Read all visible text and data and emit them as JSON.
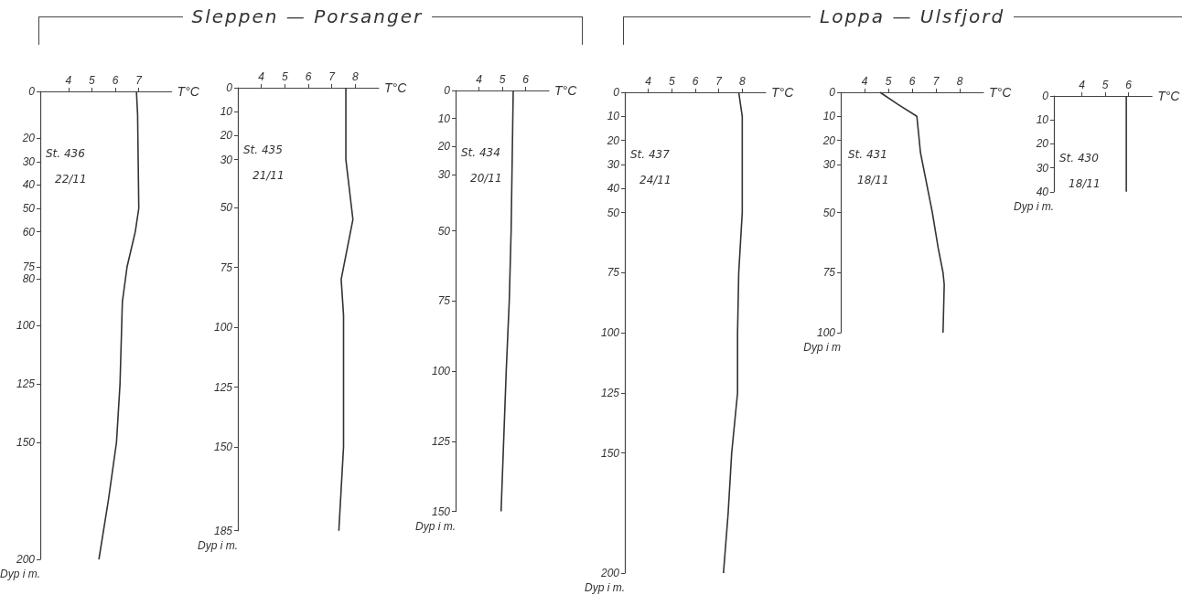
{
  "chart_data": [
    {
      "type": "line",
      "xlabel": "T°C",
      "ylabel": "Dyp i m.",
      "annotations": [
        "St. 436",
        "22/11"
      ],
      "xlim": [
        2.8,
        8.4
      ],
      "xticks": [
        4,
        5,
        6,
        7
      ],
      "ylim": [
        200,
        0
      ],
      "yticks": [
        0,
        20,
        30,
        40,
        50,
        60,
        75,
        80,
        100,
        125,
        150,
        200
      ],
      "grid": false,
      "marker": "none",
      "series": [
        {
          "color": "#333333",
          "x": [
            6.9,
            6.95,
            7.0,
            6.85,
            6.5,
            6.3,
            6.2,
            6.05,
            5.7,
            5.3
          ],
          "values": [
            0,
            10,
            50,
            60,
            75,
            90,
            125,
            150,
            175,
            200
          ]
        }
      ]
    },
    {
      "type": "line",
      "title": "Sleppen — Porsanger",
      "xlabel": "T°C",
      "ylabel": "Dyp i m.",
      "annotations": [
        "St. 435",
        "21/11"
      ],
      "xlim": [
        3,
        9
      ],
      "xticks": [
        4,
        5,
        6,
        7,
        8
      ],
      "ylim": [
        185,
        0
      ],
      "yticks": [
        0,
        10,
        20,
        30,
        50,
        75,
        100,
        125,
        150,
        185
      ],
      "grid": false,
      "marker": "none",
      "series": [
        {
          "color": "#333333",
          "x": [
            7.6,
            7.6,
            7.9,
            7.4,
            7.5,
            7.5,
            7.3
          ],
          "values": [
            0,
            30,
            55,
            80,
            95,
            150,
            185
          ]
        }
      ]
    },
    {
      "type": "line",
      "xlabel": "T°C",
      "ylabel": "Dyp i m.",
      "annotations": [
        "St. 434",
        "20/11"
      ],
      "xlim": [
        3,
        7
      ],
      "xticks": [
        4,
        5,
        6
      ],
      "ylim": [
        150,
        0
      ],
      "yticks": [
        0,
        10,
        20,
        30,
        50,
        75,
        100,
        125,
        150
      ],
      "grid": false,
      "marker": "none",
      "series": [
        {
          "color": "#333333",
          "x": [
            5.47,
            5.38,
            5.3,
            5.17,
            4.95
          ],
          "values": [
            0,
            50,
            75,
            100,
            150
          ]
        }
      ]
    },
    {
      "type": "line",
      "xlabel": "T°C",
      "ylabel": "Dyp i m.",
      "annotations": [
        "St. 437",
        "24/11"
      ],
      "xlim": [
        3,
        9
      ],
      "xticks": [
        4,
        5,
        6,
        7,
        8
      ],
      "ylim": [
        200,
        0
      ],
      "yticks": [
        0,
        10,
        20,
        30,
        40,
        50,
        75,
        100,
        125,
        150,
        200
      ],
      "grid": false,
      "marker": "none",
      "series": [
        {
          "color": "#333333",
          "x": [
            7.85,
            8.0,
            8.0,
            7.85,
            7.8,
            7.8,
            7.55,
            7.4,
            7.2
          ],
          "values": [
            0,
            10,
            50,
            75,
            100,
            125,
            150,
            175,
            200
          ]
        }
      ]
    },
    {
      "type": "line",
      "title": "Loppa — Ulsfjord",
      "xlabel": "T°C",
      "ylabel": "Dyp i m",
      "annotations": [
        "St. 431",
        "18/11"
      ],
      "xlim": [
        3,
        9
      ],
      "xticks": [
        4,
        5,
        6,
        7,
        8
      ],
      "ylim": [
        100,
        0
      ],
      "yticks": [
        0,
        10,
        20,
        30,
        50,
        75,
        100
      ],
      "grid": false,
      "marker": "none",
      "series": [
        {
          "color": "#333333",
          "x": [
            4.65,
            5.4,
            6.2,
            6.25,
            6.35,
            6.85,
            7.1,
            7.3,
            7.35,
            7.3
          ],
          "values": [
            0,
            5,
            10,
            15,
            25,
            50,
            65,
            75,
            80,
            100
          ]
        }
      ]
    },
    {
      "type": "line",
      "xlabel": "T°C",
      "ylabel": "Dyp i m.",
      "annotations": [
        "St. 430",
        "18/11"
      ],
      "xlim": [
        2.8,
        7
      ],
      "xticks": [
        4,
        5,
        6
      ],
      "ylim": [
        40,
        0
      ],
      "yticks": [
        0,
        10,
        20,
        30,
        40
      ],
      "grid": false,
      "marker": "none",
      "series": [
        {
          "color": "#333333",
          "x": [
            5.9,
            5.9
          ],
          "values": [
            0,
            40
          ]
        }
      ]
    }
  ]
}
